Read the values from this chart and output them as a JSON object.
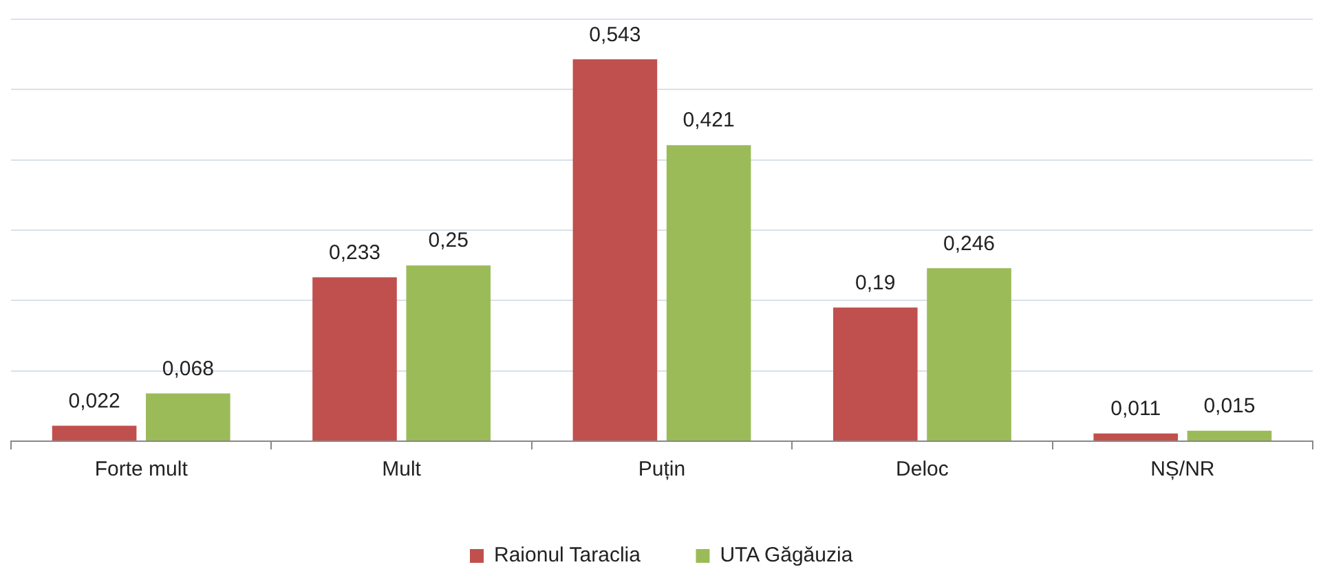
{
  "chart_data": {
    "type": "bar",
    "categories": [
      "Forte mult",
      "Mult",
      "Puțin",
      "Deloc",
      "NȘ/NR"
    ],
    "series": [
      {
        "name": "Raionul Taraclia",
        "color": "#c0504d",
        "values": [
          0.022,
          0.233,
          0.543,
          0.19,
          0.011
        ],
        "value_labels": [
          "0,022",
          "0,233",
          "0,543",
          "0,19",
          "0,011"
        ]
      },
      {
        "name": "UTA Găgăuzia",
        "color": "#9bbb59",
        "values": [
          0.068,
          0.25,
          0.421,
          0.246,
          0.015
        ],
        "value_labels": [
          "0,068",
          "0,25",
          "0,421",
          "0,246",
          "0,015"
        ]
      }
    ],
    "ylim": [
      0,
      0.6
    ],
    "yticks": [
      {
        "value": 0,
        "label": null
      },
      {
        "value": 0.1,
        "label": null
      },
      {
        "value": 0.2,
        "label": null
      },
      {
        "value": 0.3,
        "label": null
      },
      {
        "value": 0.4,
        "label": null
      },
      {
        "value": 0.5,
        "label": null
      },
      {
        "value": 0.6,
        "label": null
      }
    ],
    "tick_labels": "x",
    "grid": "y",
    "legend": "bottom"
  }
}
